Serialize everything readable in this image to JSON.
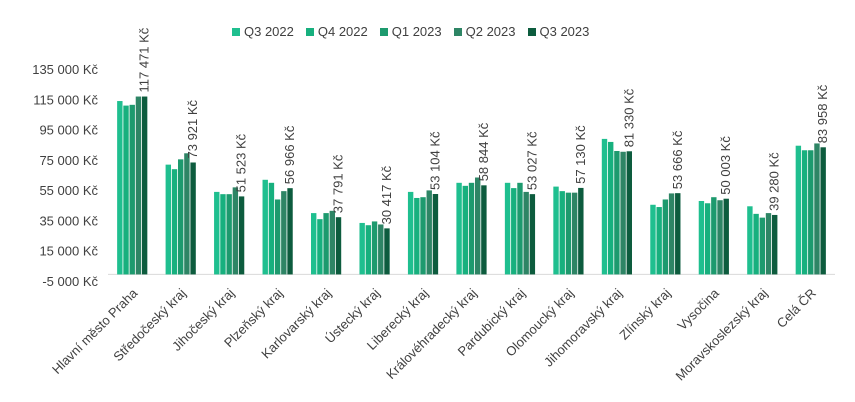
{
  "chart_data": {
    "type": "bar",
    "title": "",
    "xlabel": "",
    "ylabel": "",
    "ylim": [
      -5000,
      135000
    ],
    "yticks": [
      135000,
      115000,
      95000,
      75000,
      55000,
      35000,
      15000,
      -5000
    ],
    "ytick_labels": [
      "135 000 Kč",
      "115 000 Kč",
      "95 000 Kč",
      "75 000 Kč",
      "55 000 Kč",
      "35 000 Kč",
      "15 000 Kč",
      "-5 000 Kč"
    ],
    "grid": false,
    "legend_position": "top",
    "categories": [
      "Hlavní město Praha",
      "Středočeský kraj",
      "Jihočeský kraj",
      "Plzeňský kraj",
      "Karlovarský kraj",
      "Ústecký kraj",
      "Liberecký kraj",
      "Královéhradecký kraj",
      "Pardubický kraj",
      "Olomoucký kraj",
      "Jihomoravský kraj",
      "Zlínský kraj",
      "Vysočina",
      "Moravskoslezský kraj",
      "Celá ČR"
    ],
    "series": [
      {
        "name": "Q3 2022",
        "color": "#1fbf8f",
        "values": [
          114500,
          72500,
          54500,
          62500,
          40500,
          34000,
          54500,
          60500,
          60500,
          58000,
          89500,
          46000,
          48500,
          45000,
          85000
        ]
      },
      {
        "name": "Q4 2022",
        "color": "#17b07e",
        "values": [
          111500,
          69500,
          53000,
          60500,
          36500,
          32500,
          50500,
          58500,
          57000,
          55000,
          87500,
          44500,
          47000,
          40000,
          82000
        ]
      },
      {
        "name": "Q1 2023",
        "color": "#1d9a6e",
        "values": [
          112000,
          76000,
          53000,
          49500,
          40500,
          35000,
          51000,
          60500,
          60500,
          54000,
          81500,
          49500,
          51000,
          37500,
          82000
        ]
      },
      {
        "name": "Q2 2023",
        "color": "#2e8565",
        "values": [
          117471,
          80000,
          57500,
          55000,
          42000,
          33000,
          55500,
          64000,
          54500,
          54000,
          81000,
          53500,
          49000,
          40500,
          86500
        ]
      },
      {
        "name": "Q3 2023",
        "color": "#0d5c3e",
        "values": [
          117471,
          73921,
          51523,
          56966,
          37791,
          30417,
          53104,
          58844,
          53027,
          57130,
          81330,
          53666,
          50003,
          39280,
          83958
        ]
      }
    ],
    "data_labels": [
      "117 471 Kč",
      "73 921 Kč",
      "51 523 Kč",
      "56 966 Kč",
      "37 791 Kč",
      "30 417 Kč",
      "53 104 Kč",
      "58 844 Kč",
      "53 027 Kč",
      "57 130 Kč",
      "81 330 Kč",
      "53 666 Kč",
      "50 003 Kč",
      "39 280 Kč",
      "83 958 Kč"
    ]
  }
}
